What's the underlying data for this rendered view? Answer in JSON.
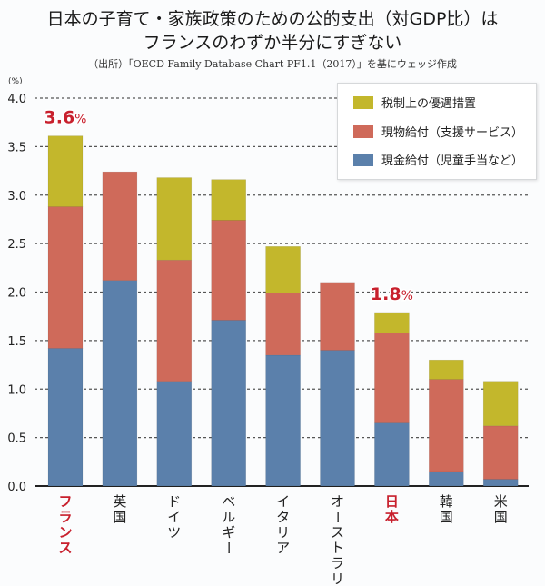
{
  "header": {
    "title_line1": "日本の子育て・家族政策のための公的支出（対GDP比）は",
    "title_line2": "フランスのわずか半分にすぎない",
    "source": "（出所）「OECD Family Database Chart PF1.1（2017）」を基にウェッジ作成"
  },
  "legend": {
    "items": [
      {
        "label": "税制上の優遇措置",
        "color": "#c3b72c"
      },
      {
        "label": "現物給付（支援サービス）",
        "color": "#cf6a5a"
      },
      {
        "label": "現金給付（児童手当など）",
        "color": "#5b80ab"
      }
    ]
  },
  "chart_data": {
    "type": "bar",
    "stacked": true,
    "title": "日本の子育て・家族政策のための公的支出（対GDP比）は フランスのわずか半分にすぎない",
    "ylabel": "(%)",
    "xlabel": "",
    "ylim": [
      0,
      4.0
    ],
    "yticks": [
      "0.0",
      "0.5",
      "1.0",
      "1.5",
      "2.0",
      "2.5",
      "3.0",
      "3.5",
      "4.0"
    ],
    "grid": true,
    "legend_position": "top-right",
    "categories": [
      "フランス",
      "英国",
      "ドイツ",
      "ベルギー",
      "イタリア",
      "オーストラリア",
      "日本",
      "韓国",
      "米国"
    ],
    "highlight_categories": [
      "フランス",
      "日本"
    ],
    "highlight_color": "#c8202d",
    "series": [
      {
        "name": "現金給付（児童手当など）",
        "color": "#5b80ab",
        "values": [
          1.42,
          2.12,
          1.08,
          1.71,
          1.35,
          1.4,
          0.65,
          0.15,
          0.07
        ]
      },
      {
        "name": "現物給付（支援サービス）",
        "color": "#cf6a5a",
        "values": [
          1.46,
          1.12,
          1.25,
          1.03,
          0.64,
          0.7,
          0.93,
          0.95,
          0.55
        ]
      },
      {
        "name": "税制上の優遇措置",
        "color": "#c3b72c",
        "values": [
          0.73,
          0.0,
          0.85,
          0.42,
          0.48,
          0.0,
          0.21,
          0.2,
          0.46
        ]
      }
    ],
    "annotations": [
      {
        "category": "フランス",
        "text": "3.6",
        "suffix": "%"
      },
      {
        "category": "日本",
        "text": "1.8",
        "suffix": "%"
      }
    ]
  }
}
